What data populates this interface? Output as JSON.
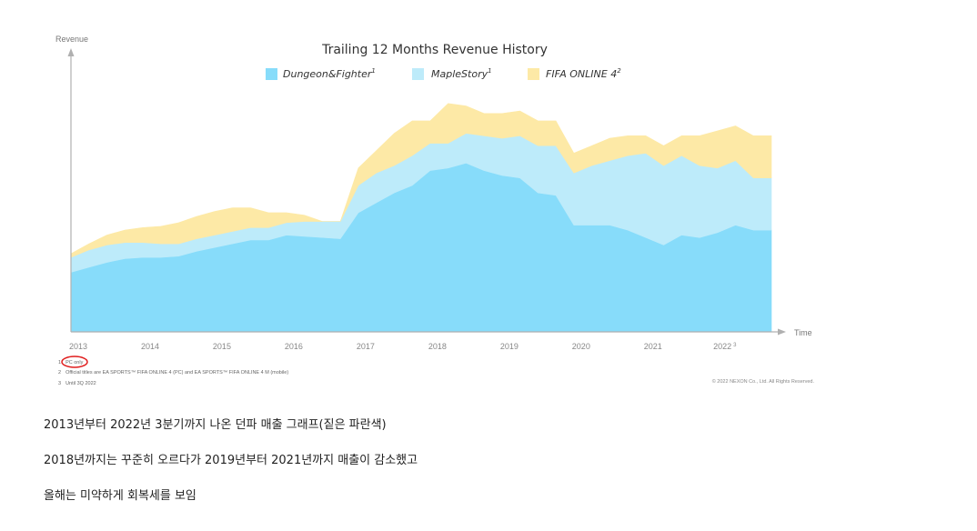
{
  "chart_data": {
    "type": "area",
    "stacked": true,
    "title": "Trailing 12 Months Revenue History",
    "ylabel": "Revenue",
    "xlabel": "Time",
    "x_range": [
      2013.0,
      2022.75
    ],
    "y_range": [
      0,
      100
    ],
    "ticks": [
      {
        "x": 2013,
        "label": "2013"
      },
      {
        "x": 2014,
        "label": "2014"
      },
      {
        "x": 2015,
        "label": "2015"
      },
      {
        "x": 2016,
        "label": "2016"
      },
      {
        "x": 2017,
        "label": "2017"
      },
      {
        "x": 2018,
        "label": "2018"
      },
      {
        "x": 2019,
        "label": "2019"
      },
      {
        "x": 2020,
        "label": "2020"
      },
      {
        "x": 2021,
        "label": "2021"
      },
      {
        "x": 2022,
        "label": "2022",
        "superscript": "3"
      }
    ],
    "legend_position": "top-center",
    "x": [
      2013.0,
      2013.25,
      2013.5,
      2013.75,
      2014.0,
      2014.25,
      2014.5,
      2014.75,
      2015.0,
      2015.25,
      2015.5,
      2015.75,
      2016.0,
      2016.25,
      2016.5,
      2016.75,
      2017.0,
      2017.25,
      2017.5,
      2017.75,
      2018.0,
      2018.25,
      2018.5,
      2018.75,
      2019.0,
      2019.25,
      2019.5,
      2019.75,
      2020.0,
      2020.25,
      2020.5,
      2020.75,
      2021.0,
      2021.25,
      2021.5,
      2021.75,
      2022.0,
      2022.25,
      2022.5,
      2022.75
    ],
    "series": [
      {
        "name": "Dungeon&Fighter",
        "superscript": "1",
        "color": "#87dcfa",
        "values": [
          24,
          26,
          28,
          29.5,
          30,
          30,
          30.5,
          32.5,
          34,
          35.5,
          37,
          37,
          39,
          38.5,
          38,
          37.5,
          48,
          52,
          56,
          59,
          65,
          66,
          68,
          65,
          63,
          62,
          56,
          55,
          43,
          43,
          43,
          41,
          38,
          35,
          39,
          38,
          40,
          43,
          41,
          41
        ]
      },
      {
        "name": "MapleStory",
        "superscript": "1",
        "color": "#bdebfa",
        "values": [
          6,
          7,
          7,
          6.5,
          6,
          5.5,
          5,
          5,
          5,
          5,
          5,
          5,
          5,
          6,
          6.5,
          7,
          11,
          12,
          11,
          12,
          11,
          10,
          12,
          14,
          15,
          17,
          19,
          20,
          21,
          24,
          26,
          30,
          34,
          32,
          32,
          29,
          26,
          26,
          21,
          21
        ]
      },
      {
        "name": "FIFA ONLINE 4",
        "superscript": "2",
        "color": "#fde9a6",
        "values": [
          1.5,
          2.5,
          4,
          5,
          6,
          7,
          8.5,
          9,
          9.5,
          9.5,
          8,
          6,
          4,
          2.5,
          0,
          0,
          7,
          9,
          13,
          14,
          9,
          16,
          11,
          9,
          10,
          10,
          10,
          10,
          8,
          8,
          9,
          8,
          7,
          8,
          8,
          12,
          15,
          14,
          17,
          17
        ]
      }
    ]
  },
  "footnotes": [
    {
      "num": "1",
      "text": "PC only"
    },
    {
      "num": "2",
      "text": "Official titles are EA SPORTS™ FIFA ONLINE 4 (PC) and EA SPORTS™ FIFA ONLINE 4 M (mobile)"
    },
    {
      "num": "3",
      "text": "Until 3Q 2022"
    }
  ],
  "copyright": "© 2022 NEXON Co., Ltd. All Rights Reserved.",
  "annotation_color": "#e01d1d",
  "post": {
    "line1": "2013년부터 2022년 3분기까지 나온 던파 매출 그래프(짙은 파란색)",
    "line2": "2018년까지는 꾸준히 오르다가 2019년부터 2021년까지 매출이 감소했고",
    "line3": "올해는 미약하게 회복세를 보임"
  }
}
